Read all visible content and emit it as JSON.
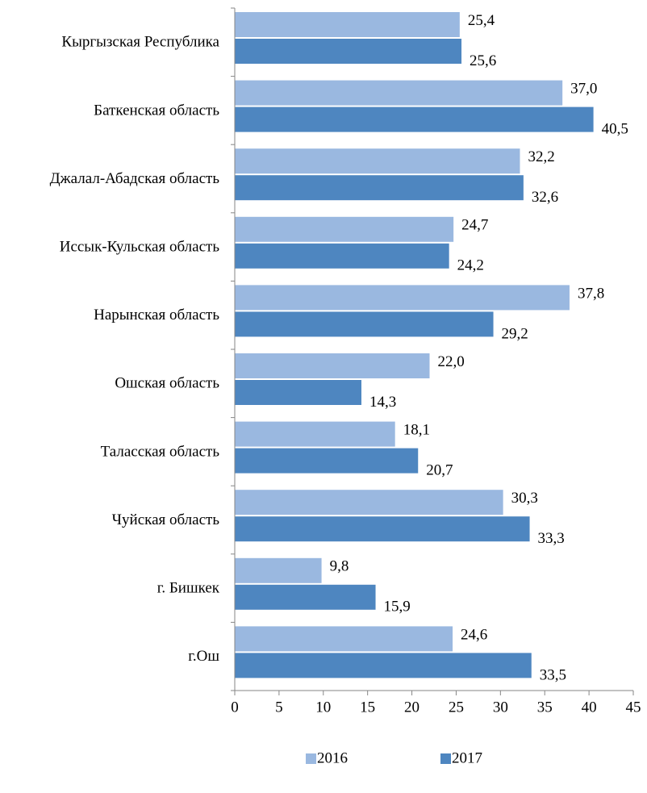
{
  "chart_data": {
    "type": "bar",
    "orientation": "horizontal",
    "categories": [
      "Кыргызская Республика",
      "Баткенская область",
      "Джалал-Абадская область",
      "Иссык-Кульская область",
      "Нарынская область",
      "Ошская область",
      "Таласская область",
      "Чуйская область",
      "г. Бишкек",
      "г.Ош"
    ],
    "series": [
      {
        "name": "2016",
        "color": "#9ab8e0",
        "values": [
          25.4,
          37.0,
          32.2,
          24.7,
          37.8,
          22.0,
          18.1,
          30.3,
          9.8,
          24.6
        ],
        "labels": [
          "25,4",
          "37,0",
          "32,2",
          "24,7",
          "37,8",
          "22,0",
          "18,1",
          "30,3",
          "9,8",
          "24,6"
        ]
      },
      {
        "name": "2017",
        "color": "#4e86c0",
        "values": [
          25.6,
          40.5,
          32.6,
          24.2,
          29.2,
          14.3,
          20.7,
          33.3,
          15.9,
          33.5
        ],
        "labels": [
          "25,6",
          "40,5",
          "32,6",
          "24,2",
          "29,2",
          "14,3",
          "20,7",
          "33,3",
          "15,9",
          "33,5"
        ]
      }
    ],
    "xlim": [
      0,
      45
    ],
    "xticks": [
      0,
      5,
      10,
      15,
      20,
      25,
      30,
      35,
      40,
      45
    ],
    "title": "",
    "xlabel": "",
    "ylabel": "",
    "grid": false,
    "legend_position": "bottom"
  }
}
